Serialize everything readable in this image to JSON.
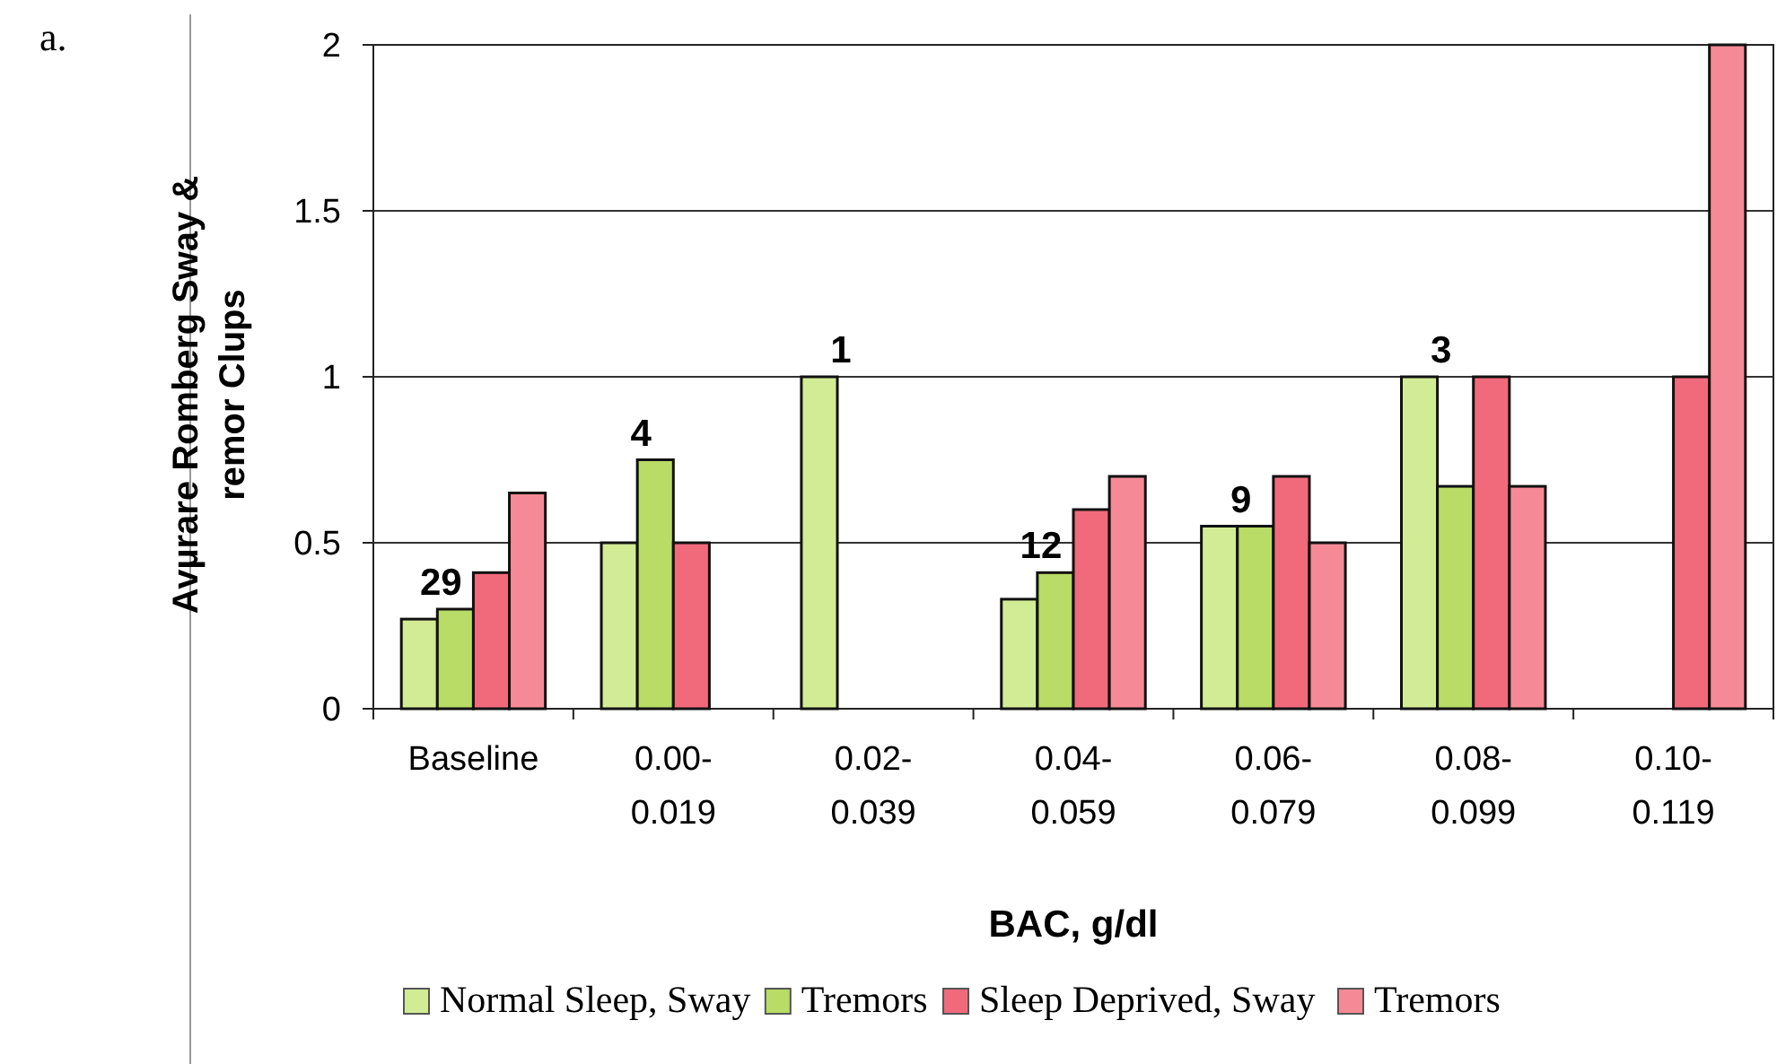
{
  "chart_data": {
    "type": "bar",
    "xlabel": "BAC, g/dl",
    "ylabel": "Avµrare Romberg Sway & remor Clups",
    "categories": [
      "Baseline",
      "0.00-\n0.019",
      "0.02-\n0.039",
      "0.04-\n0.059",
      "0.06-\n0.079",
      "0.08-\n0.099",
      "0.10-\n0.119"
    ],
    "series": [
      {
        "name": "Normal Sleep, Sway",
        "color": "#d2ec96",
        "values": [
          0.27,
          0.5,
          1,
          0.33,
          0.55,
          1,
          null
        ]
      },
      {
        "name": "Tremors",
        "color": "#b8dc66",
        "values": [
          0.3,
          0.75,
          null,
          0.41,
          0.55,
          0.67,
          null
        ]
      },
      {
        "name": "Sleep Deprived, Sway",
        "color": "#f06a7c",
        "values": [
          0.41,
          0.5,
          null,
          0.6,
          0.7,
          1,
          1
        ]
      },
      {
        "name": "Tremors",
        "color": "#f58a96",
        "values": [
          0.65,
          null,
          null,
          0.7,
          0.5,
          0.67,
          2
        ]
      }
    ],
    "ylim": [
      0,
      2
    ],
    "yticks": [
      0,
      0.5,
      1,
      1.5,
      2
    ],
    "grid": "y",
    "legend": "bottom",
    "annotations": [
      "a.",
      "29",
      "4",
      "1",
      "12",
      "9",
      "3"
    ]
  }
}
